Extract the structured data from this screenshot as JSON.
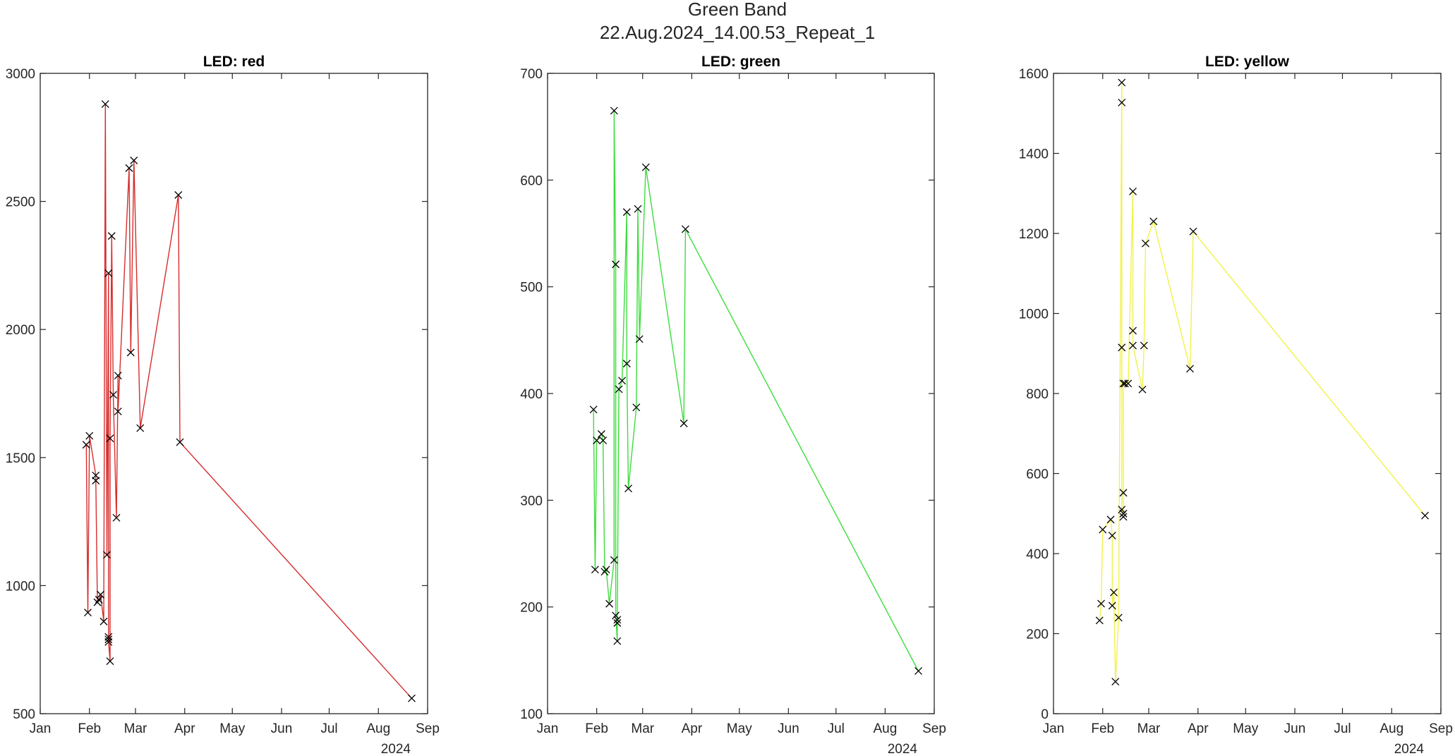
{
  "figure": {
    "suptitle_line1": "Green Band",
    "suptitle_line2": "22.Aug.2024_14.00.53_Repeat_1"
  },
  "chart_data": [
    {
      "type": "line",
      "title": "LED: red",
      "color": "#d62d2d",
      "marker": "x",
      "xlabel": "",
      "ylabel": "",
      "x_ticks": [
        "Jan",
        "Feb",
        "Mar",
        "Apr",
        "May",
        "Jun",
        "Jul",
        "Aug",
        "Sep"
      ],
      "x_year": "2024",
      "y_ticks": [
        "500",
        "1000",
        "1500",
        "2000",
        "2500",
        "3000"
      ],
      "ylim": [
        500,
        3000
      ],
      "xlim": [
        "2024-01-01",
        "2024-09-01"
      ],
      "grid": false,
      "x": [
        "2024-01-30",
        "2024-01-31",
        "2024-02-01",
        "2024-02-05",
        "2024-02-05",
        "2024-02-06",
        "2024-02-07",
        "2024-02-08",
        "2024-02-10",
        "2024-02-11",
        "2024-02-12",
        "2024-02-13",
        "2024-02-13",
        "2024-02-13",
        "2024-02-13",
        "2024-02-14",
        "2024-02-14",
        "2024-02-15",
        "2024-02-16",
        "2024-02-18",
        "2024-02-19",
        "2024-02-19",
        "2024-02-26",
        "2024-02-27",
        "2024-02-29",
        "2024-03-04",
        "2024-03-28",
        "2024-03-29",
        "2024-08-22"
      ],
      "y": [
        1550,
        895,
        1585,
        1430,
        1410,
        935,
        945,
        965,
        860,
        2880,
        1120,
        2220,
        800,
        790,
        780,
        705,
        1575,
        2365,
        1745,
        1265,
        1820,
        1680,
        2630,
        1910,
        2660,
        1615,
        2525,
        1560,
        560
      ]
    },
    {
      "type": "line",
      "title": "LED: green",
      "color": "#3ddc3d",
      "marker": "x",
      "xlabel": "",
      "ylabel": "",
      "x_ticks": [
        "Jan",
        "Feb",
        "Mar",
        "Apr",
        "May",
        "Jun",
        "Jul",
        "Aug",
        "Sep"
      ],
      "x_year": "2024",
      "y_ticks": [
        "100",
        "200",
        "300",
        "400",
        "500",
        "600",
        "700"
      ],
      "ylim": [
        100,
        700
      ],
      "xlim": [
        "2024-01-01",
        "2024-09-01"
      ],
      "grid": false,
      "x": [
        "2024-01-30",
        "2024-01-31",
        "2024-02-01",
        "2024-02-04",
        "2024-02-05",
        "2024-02-06",
        "2024-02-07",
        "2024-02-09",
        "2024-02-12",
        "2024-02-12",
        "2024-02-13",
        "2024-02-13",
        "2024-02-14",
        "2024-02-14",
        "2024-02-14",
        "2024-02-15",
        "2024-02-17",
        "2024-02-20",
        "2024-02-20",
        "2024-02-21",
        "2024-02-26",
        "2024-02-27",
        "2024-02-28",
        "2024-03-03",
        "2024-03-27",
        "2024-03-28",
        "2024-08-22"
      ],
      "y": [
        385,
        235,
        356,
        362,
        356,
        233,
        235,
        203,
        244,
        665,
        521,
        192,
        168,
        185,
        188,
        404,
        412,
        570,
        428,
        311,
        387,
        573,
        451,
        612,
        372,
        554,
        140
      ]
    },
    {
      "type": "line",
      "title": "LED: yellow",
      "color": "#f2f24a",
      "marker": "x",
      "xlabel": "",
      "ylabel": "",
      "x_ticks": [
        "Jan",
        "Feb",
        "Mar",
        "Apr",
        "May",
        "Jun",
        "Jul",
        "Aug",
        "Sep"
      ],
      "x_year": "2024",
      "y_ticks": [
        "0",
        "200",
        "400",
        "600",
        "800",
        "1000",
        "1200",
        "1400",
        "1600"
      ],
      "ylim": [
        0,
        1600
      ],
      "xlim": [
        "2024-01-01",
        "2024-09-01"
      ],
      "grid": false,
      "x": [
        "2024-01-30",
        "2024-01-31",
        "2024-02-01",
        "2024-02-06",
        "2024-02-07",
        "2024-02-07",
        "2024-02-08",
        "2024-02-09",
        "2024-02-11",
        "2024-02-13",
        "2024-02-13",
        "2024-02-13",
        "2024-02-13",
        "2024-02-14",
        "2024-02-14",
        "2024-02-14",
        "2024-02-14",
        "2024-02-15",
        "2024-02-17",
        "2024-02-20",
        "2024-02-20",
        "2024-02-20",
        "2024-02-26",
        "2024-02-27",
        "2024-02-28",
        "2024-03-04",
        "2024-03-27",
        "2024-03-29",
        "2024-08-22"
      ],
      "y": [
        233,
        275,
        460,
        485,
        445,
        270,
        303,
        80,
        240,
        1577,
        1527,
        915,
        510,
        492,
        500,
        552,
        825,
        825,
        825,
        1305,
        957,
        920,
        810,
        920,
        1175,
        1230,
        862,
        1205,
        495
      ]
    }
  ]
}
